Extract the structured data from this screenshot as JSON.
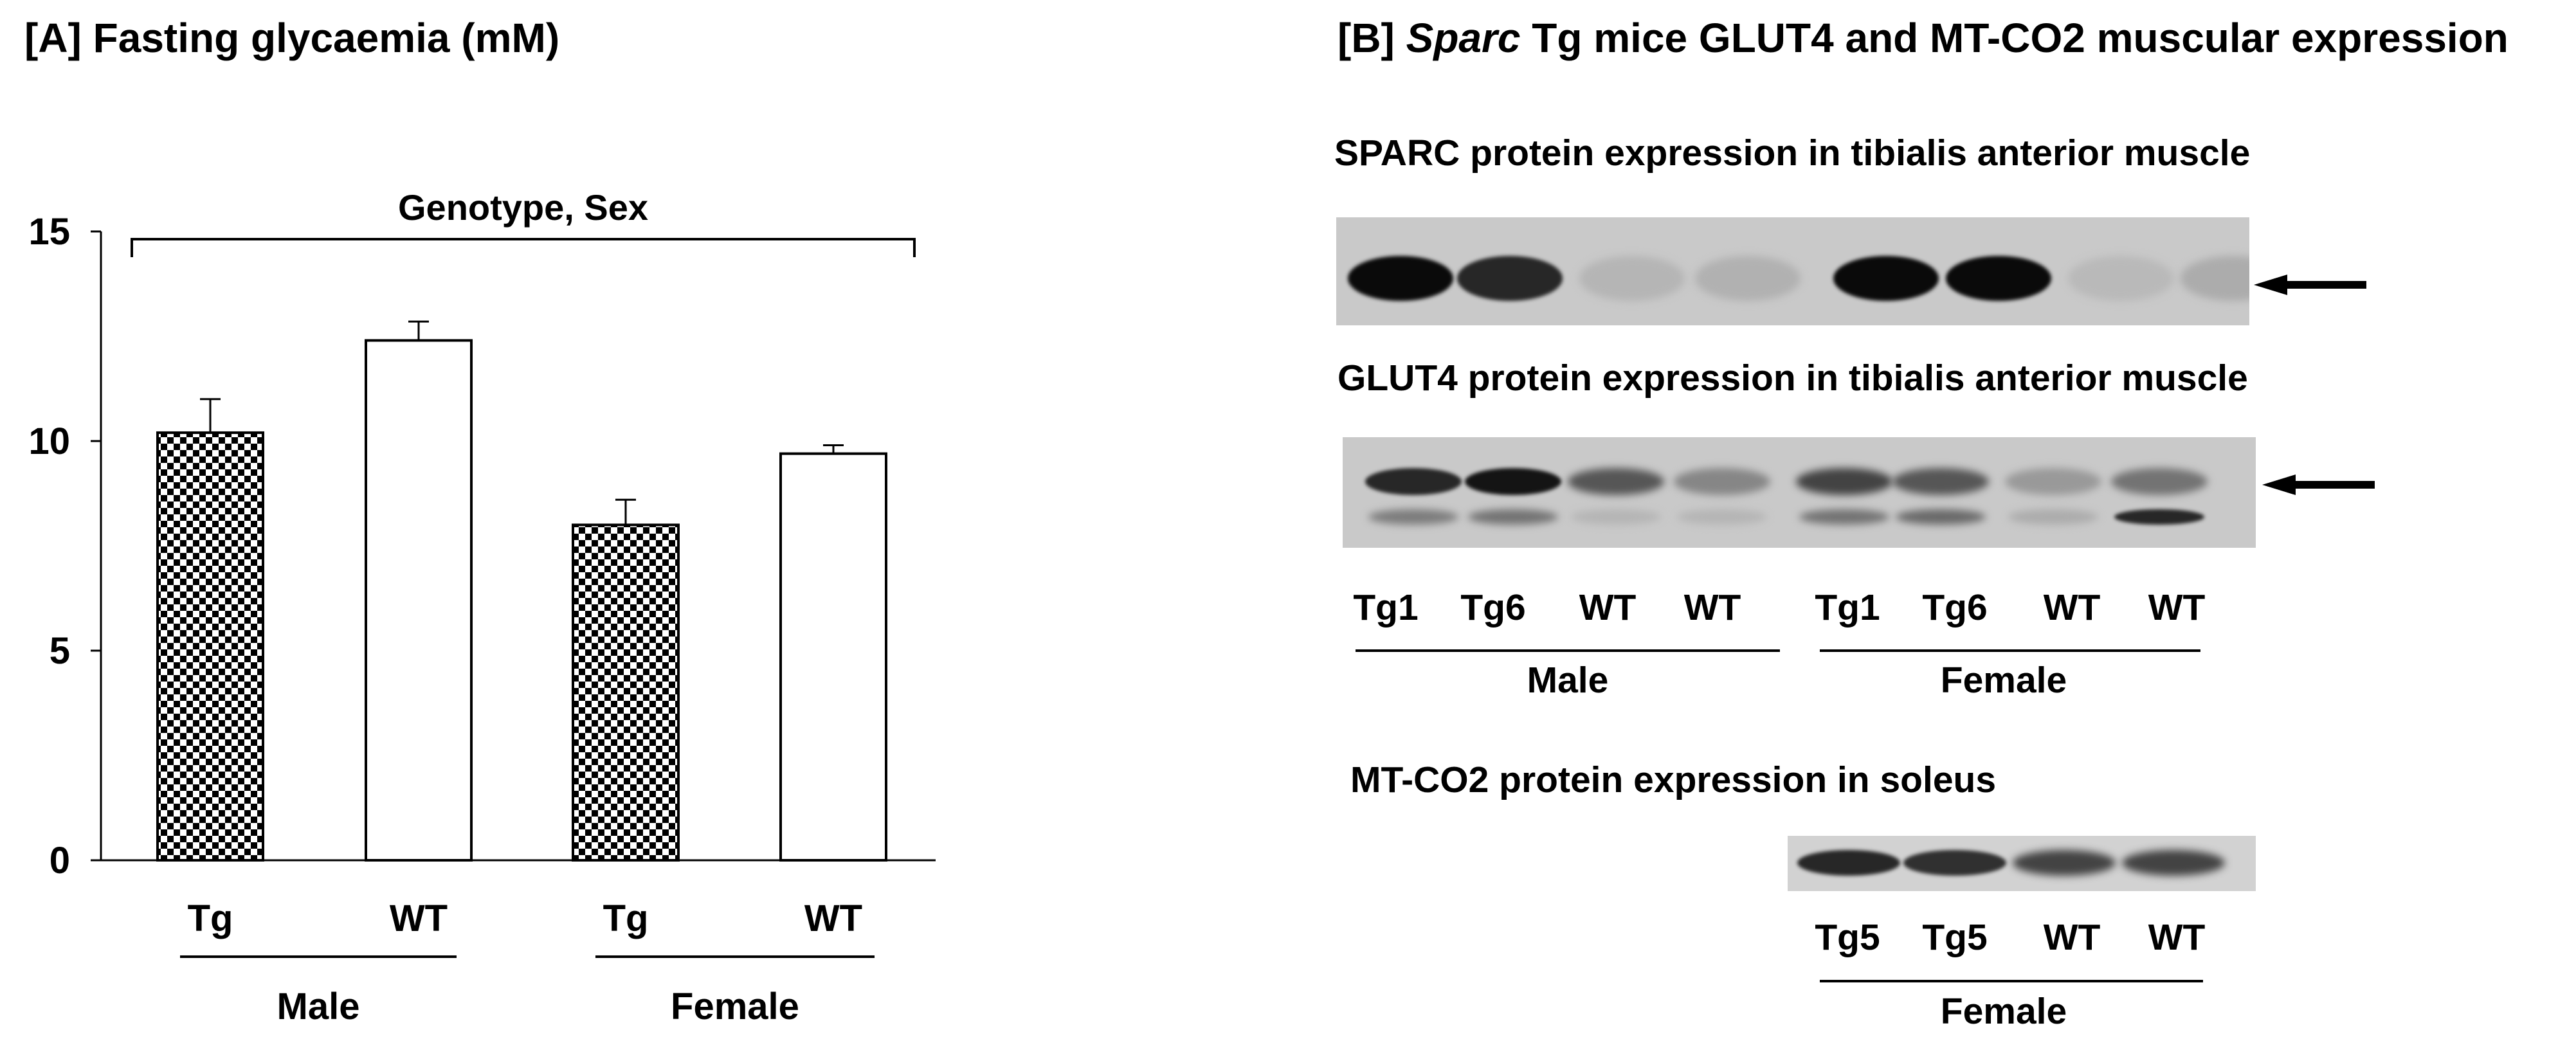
{
  "panel_a": {
    "title": "[A] Fasting glycaemia (mM)",
    "bracket_label": "Genotype, Sex"
  },
  "panel_b": {
    "title_prefix": "[B] ",
    "title_italic": "Sparc",
    "title_rest": " Tg mice GLUT4 and MT-CO2 muscular expression",
    "sparc_title": "SPARC protein expression in tibialis anterior muscle",
    "glut4_title": "GLUT4 protein expression in tibialis anterior muscle",
    "mtco2_title": "MT-CO2 protein expression in soleus",
    "glut4_lanes": [
      "Tg1",
      "Tg6",
      "WT",
      "WT",
      "Tg1",
      "Tg6",
      "WT",
      "WT"
    ],
    "glut4_groups": [
      "Male",
      "Female"
    ],
    "mtco2_lanes": [
      "Tg5",
      "Tg5",
      "WT",
      "WT"
    ],
    "mtco2_group": "Female",
    "sparc_band_intensity": [
      1.0,
      0.85,
      0.1,
      0.12,
      1.0,
      1.0,
      0.08,
      0.15
    ],
    "glut4_band_intensity": [
      0.85,
      0.95,
      0.6,
      0.35,
      0.7,
      0.6,
      0.25,
      0.45
    ],
    "glut4_lower_band_intensity": [
      0.4,
      0.45,
      0.1,
      0.1,
      0.45,
      0.5,
      0.15,
      0.85
    ],
    "mtco2_band_intensity": [
      0.85,
      0.8,
      0.7,
      0.7
    ]
  },
  "chart_data": {
    "type": "bar",
    "title": "[A] Fasting glycaemia (mM)",
    "categories": [
      "Tg",
      "WT",
      "Tg",
      "WT"
    ],
    "groups": [
      "Male",
      "Female"
    ],
    "values": [
      10.2,
      12.4,
      8.0,
      9.7
    ],
    "errors": [
      0.8,
      0.45,
      0.6,
      0.2
    ],
    "patterns": [
      "checkerboard",
      "white",
      "checkerboard",
      "white"
    ],
    "yticks": [
      0,
      5,
      10,
      15
    ],
    "ylim": [
      0,
      15
    ],
    "grid": false,
    "bracket_label": "Genotype, Sex"
  }
}
